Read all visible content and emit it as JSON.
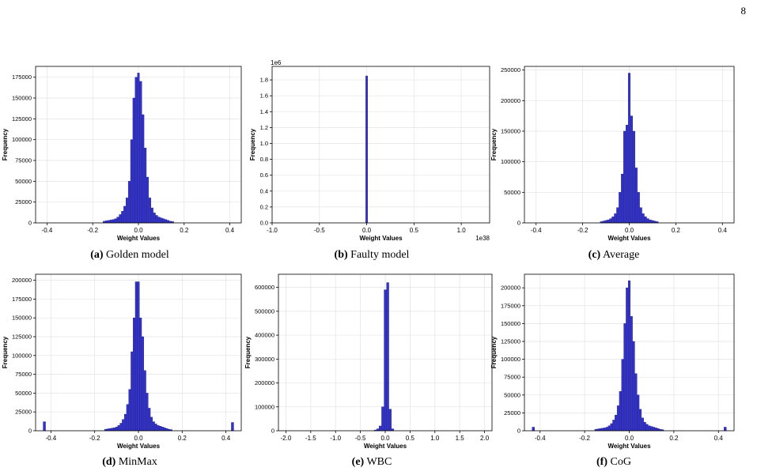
{
  "page_number": "8",
  "chart_data": [
    {
      "type": "bar",
      "id": "a",
      "caption_label": "(a)",
      "caption_text": "Golden model",
      "xlabel": "Weight Values",
      "ylabel": "Frequency",
      "offset_text": "",
      "xlim": [
        -0.45,
        0.45
      ],
      "ylim": [
        0,
        188000
      ],
      "xticks": [
        -0.4,
        -0.2,
        0.0,
        0.2,
        0.4
      ],
      "xtick_labels": [
        "-0.4",
        "-0.2",
        "0.0",
        "0.2",
        "0.4"
      ],
      "yticks": [
        0,
        25000,
        50000,
        75000,
        100000,
        125000,
        150000,
        175000
      ],
      "ytick_labels": [
        "0",
        "25000",
        "50000",
        "75000",
        "100000",
        "125000",
        "150000",
        "175000"
      ],
      "bins": {
        "centers": [
          -0.15,
          -0.14,
          -0.13,
          -0.12,
          -0.11,
          -0.1,
          -0.09,
          -0.08,
          -0.07,
          -0.06,
          -0.05,
          -0.04,
          -0.03,
          -0.02,
          -0.01,
          0.0,
          0.01,
          0.02,
          0.03,
          0.04,
          0.05,
          0.06,
          0.07,
          0.08,
          0.09,
          0.1,
          0.11,
          0.12,
          0.13,
          0.14,
          0.15
        ],
        "width": 0.009,
        "values": [
          2000,
          2500,
          3000,
          3500,
          4000,
          5000,
          7000,
          10000,
          14000,
          20000,
          30000,
          50000,
          100000,
          150000,
          175000,
          180000,
          170000,
          130000,
          90000,
          55000,
          30000,
          18000,
          12000,
          9000,
          7000,
          6000,
          5000,
          4000,
          3000,
          2000,
          1500
        ]
      },
      "outliers": []
    },
    {
      "type": "bar",
      "id": "b",
      "caption_label": "(b)",
      "caption_text": "Faulty model",
      "xlabel": "Weight Values",
      "ylabel": "Frequency",
      "offset_text": "1e6",
      "x_offset_text": "1e38",
      "xlim": [
        -1.0,
        1.3
      ],
      "ylim": [
        0,
        1.97
      ],
      "xticks": [
        -1.0,
        -0.5,
        0.0,
        0.5,
        1.0
      ],
      "xtick_labels": [
        "-1.0",
        "-0.5",
        "0.0",
        "0.5",
        "1.0"
      ],
      "yticks": [
        0,
        0.2,
        0.4,
        0.6,
        0.8,
        1.0,
        1.2,
        1.4,
        1.6,
        1.8
      ],
      "ytick_labels": [
        "0.0",
        "0.2",
        "0.4",
        "0.6",
        "0.8",
        "1.0",
        "1.2",
        "1.4",
        "1.6",
        "1.8"
      ],
      "bins": {
        "centers": [
          0.0
        ],
        "width": 0.02,
        "values": [
          1.85
        ]
      },
      "outliers": []
    },
    {
      "type": "bar",
      "id": "c",
      "caption_label": "(c)",
      "caption_text": "Average",
      "xlabel": "Weight Values",
      "ylabel": "Frequency",
      "offset_text": "",
      "xlim": [
        -0.45,
        0.45
      ],
      "ylim": [
        0,
        256000
      ],
      "xticks": [
        -0.4,
        -0.2,
        0.0,
        0.2,
        0.4
      ],
      "xtick_labels": [
        "-0.4",
        "-0.2",
        "0.0",
        "0.2",
        "0.4"
      ],
      "yticks": [
        0,
        50000,
        100000,
        150000,
        200000,
        250000
      ],
      "ytick_labels": [
        "0",
        "50000",
        "100000",
        "150000",
        "200000",
        "250000"
      ],
      "bins": {
        "centers": [
          -0.12,
          -0.11,
          -0.1,
          -0.09,
          -0.08,
          -0.07,
          -0.06,
          -0.05,
          -0.04,
          -0.03,
          -0.02,
          -0.01,
          0.0,
          0.01,
          0.02,
          0.03,
          0.04,
          0.05,
          0.06,
          0.07,
          0.08,
          0.09,
          0.1,
          0.11,
          0.12
        ],
        "width": 0.009,
        "values": [
          2000,
          3000,
          4000,
          5000,
          7000,
          10000,
          15000,
          25000,
          50000,
          80000,
          150000,
          160000,
          245000,
          175000,
          150000,
          90000,
          50000,
          25000,
          15000,
          10000,
          7000,
          5000,
          4000,
          3000,
          2000
        ]
      },
      "outliers": []
    },
    {
      "type": "bar",
      "id": "d",
      "caption_label": "(d)",
      "caption_text": "MinMax",
      "xlabel": "Weight Values",
      "ylabel": "Frequency",
      "offset_text": "",
      "xlim": [
        -0.47,
        0.47
      ],
      "ylim": [
        0,
        208000
      ],
      "xticks": [
        -0.4,
        -0.2,
        0.0,
        0.2,
        0.4
      ],
      "xtick_labels": [
        "-0.4",
        "-0.2",
        "0.0",
        "0.2",
        "0.4"
      ],
      "yticks": [
        0,
        25000,
        50000,
        75000,
        100000,
        125000,
        150000,
        175000,
        200000
      ],
      "ytick_labels": [
        "0",
        "25000",
        "50000",
        "75000",
        "100000",
        "125000",
        "150000",
        "175000",
        "200000"
      ],
      "bins": {
        "centers": [
          -0.15,
          -0.14,
          -0.13,
          -0.12,
          -0.11,
          -0.1,
          -0.09,
          -0.08,
          -0.07,
          -0.06,
          -0.05,
          -0.04,
          -0.03,
          -0.02,
          -0.01,
          0.0,
          0.01,
          0.02,
          0.03,
          0.04,
          0.05,
          0.06,
          0.07,
          0.08,
          0.09,
          0.1,
          0.11,
          0.12,
          0.13,
          0.14,
          0.15
        ],
        "width": 0.009,
        "values": [
          2000,
          2500,
          3000,
          3500,
          4000,
          5000,
          7000,
          10000,
          15000,
          22000,
          35000,
          55000,
          105000,
          150000,
          198000,
          198000,
          150000,
          125000,
          80000,
          50000,
          30000,
          18000,
          12000,
          9000,
          7000,
          6000,
          5000,
          4000,
          3000,
          2000,
          1500
        ]
      },
      "outliers": [
        {
          "x": -0.43,
          "value": 12000
        },
        {
          "x": 0.43,
          "value": 11000
        }
      ]
    },
    {
      "type": "bar",
      "id": "e",
      "caption_label": "(e)",
      "caption_text": "WBC",
      "xlabel": "Weight Values",
      "ylabel": "Frequency",
      "offset_text": "",
      "xlim": [
        -2.15,
        2.15
      ],
      "ylim": [
        0,
        655000
      ],
      "xticks": [
        -2.0,
        -1.5,
        -1.0,
        -0.5,
        0.0,
        0.5,
        1.0,
        1.5,
        2.0
      ],
      "xtick_labels": [
        "-2.0",
        "-1.5",
        "-1.0",
        "-0.5",
        "0.0",
        "0.5",
        "1.0",
        "1.5",
        "2.0"
      ],
      "yticks": [
        0,
        100000,
        200000,
        300000,
        400000,
        500000,
        600000
      ],
      "ytick_labels": [
        "0",
        "100000",
        "200000",
        "300000",
        "400000",
        "500000",
        "600000"
      ],
      "bins": {
        "centers": [
          -0.2,
          -0.15,
          -0.1,
          -0.05,
          0.0,
          0.05,
          0.1,
          0.15
        ],
        "width": 0.045,
        "values": [
          3000,
          8000,
          20000,
          100000,
          590000,
          620000,
          90000,
          8000
        ]
      },
      "outliers": []
    },
    {
      "type": "bar",
      "id": "f",
      "caption_label": "(f)",
      "caption_text": "CoG",
      "xlabel": "Weight Values",
      "ylabel": "Frequency",
      "offset_text": "",
      "xlim": [
        -0.47,
        0.47
      ],
      "ylim": [
        0,
        219000
      ],
      "xticks": [
        -0.4,
        -0.2,
        0.0,
        0.2,
        0.4
      ],
      "xtick_labels": [
        "-0.4",
        "-0.2",
        "0.0",
        "0.2",
        "0.4"
      ],
      "yticks": [
        0,
        25000,
        50000,
        75000,
        100000,
        125000,
        150000,
        175000,
        200000
      ],
      "ytick_labels": [
        "0",
        "25000",
        "50000",
        "75000",
        "100000",
        "125000",
        "150000",
        "175000",
        "200000"
      ],
      "bins": {
        "centers": [
          -0.15,
          -0.14,
          -0.13,
          -0.12,
          -0.11,
          -0.1,
          -0.09,
          -0.08,
          -0.07,
          -0.06,
          -0.05,
          -0.04,
          -0.03,
          -0.02,
          -0.01,
          0.0,
          0.01,
          0.02,
          0.03,
          0.04,
          0.05,
          0.06,
          0.07,
          0.08,
          0.09,
          0.1,
          0.11,
          0.12,
          0.13,
          0.14,
          0.15
        ],
        "width": 0.009,
        "values": [
          2000,
          2500,
          3000,
          3500,
          4000,
          5000,
          7000,
          10000,
          15000,
          22000,
          35000,
          55000,
          100000,
          150000,
          200000,
          210000,
          160000,
          125000,
          80000,
          50000,
          30000,
          18000,
          12000,
          9000,
          7000,
          6000,
          5000,
          4000,
          3000,
          2000,
          1500
        ]
      },
      "outliers": [
        {
          "x": -0.43,
          "value": 5000
        },
        {
          "x": 0.43,
          "value": 5000
        }
      ]
    }
  ],
  "colors": {
    "bar_fill": "#3333cc",
    "bar_edge": "#1a1a80",
    "grid": "#e3e3e3",
    "axis": "#000000"
  }
}
